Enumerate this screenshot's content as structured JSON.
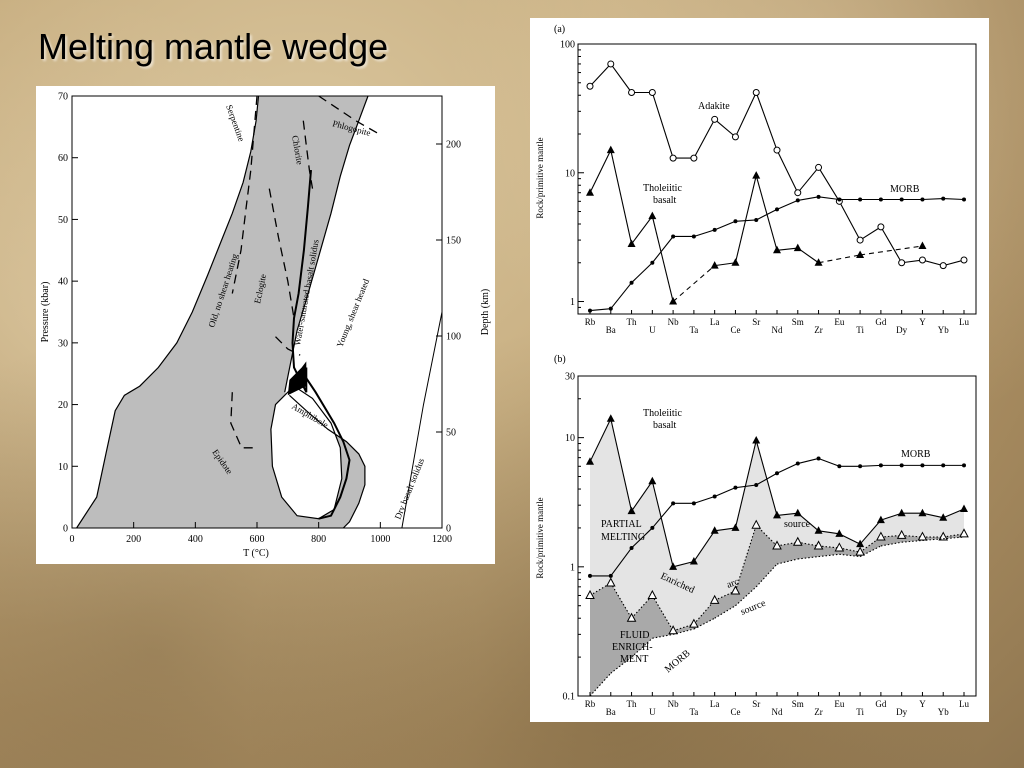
{
  "slide": {
    "title": "Melting mantle wedge",
    "background": "#c9b083"
  },
  "chart_data": [
    {
      "type": "line",
      "xlabel": "T (°C)",
      "ylabel": "Pressure (kbar)",
      "y2label": "Depth (km)",
      "xlim": [
        0,
        1200
      ],
      "ylim": [
        0,
        70
      ],
      "y2lim": [
        0,
        225
      ],
      "x_ticks": [
        0,
        200,
        400,
        600,
        800,
        1000,
        1200
      ],
      "y_ticks": [
        0,
        10,
        20,
        30,
        40,
        50,
        60,
        70
      ],
      "y2_ticks": [
        0,
        50,
        100,
        150,
        200
      ],
      "fill_color": "#bdbdbd",
      "curves": {
        "old": [
          [
            15,
            0
          ],
          [
            80,
            5
          ],
          [
            110,
            12
          ],
          [
            140,
            19
          ],
          [
            170,
            21.5
          ],
          [
            220,
            23
          ],
          [
            280,
            26
          ],
          [
            340,
            30
          ],
          [
            390,
            35
          ],
          [
            440,
            41
          ],
          [
            480,
            46
          ],
          [
            520,
            51
          ],
          [
            555,
            56
          ],
          [
            580,
            61
          ],
          [
            597,
            66
          ],
          [
            605,
            70
          ]
        ],
        "young_upper": [
          [
            690,
            22
          ],
          [
            710,
            27
          ],
          [
            730,
            32
          ],
          [
            760,
            37
          ],
          [
            800,
            44
          ],
          [
            840,
            51
          ],
          [
            870,
            57
          ],
          [
            900,
            62
          ],
          [
            930,
            66
          ],
          [
            960,
            70
          ]
        ],
        "young_lower": [
          [
            705,
            21.5
          ],
          [
            760,
            19
          ],
          [
            830,
            16
          ],
          [
            890,
            14
          ],
          [
            930,
            12
          ],
          [
            950,
            10
          ],
          [
            950,
            7
          ],
          [
            930,
            4
          ],
          [
            900,
            1
          ],
          [
            880,
            0
          ]
        ],
        "water_solidus": [
          [
            760,
            26
          ],
          [
            760,
            22
          ],
          [
            720,
            26
          ],
          [
            715,
            30
          ],
          [
            720,
            34
          ],
          [
            735,
            38
          ],
          [
            752,
            45
          ],
          [
            765,
            52
          ],
          [
            775,
            58
          ]
        ],
        "amphibole_top": [
          [
            750,
            25
          ],
          [
            790,
            22
          ],
          [
            850,
            17
          ],
          [
            880,
            14
          ],
          [
            900,
            11
          ],
          [
            890,
            8
          ],
          [
            870,
            5
          ],
          [
            840,
            2
          ],
          [
            800,
            1.5
          ]
        ],
        "amphibole_loop": [
          [
            700,
            22
          ],
          [
            660,
            20
          ],
          [
            645,
            16
          ],
          [
            650,
            10
          ],
          [
            680,
            5
          ],
          [
            730,
            2
          ],
          [
            800,
            1.5
          ],
          [
            850,
            3
          ],
          [
            875,
            8
          ],
          [
            870,
            13
          ],
          [
            840,
            17
          ],
          [
            780,
            21
          ],
          [
            720,
            23
          ],
          [
            700,
            22
          ]
        ],
        "wedge": [
          [
            705,
            24
          ],
          [
            745,
            26
          ],
          [
            760,
            27
          ],
          [
            760,
            23
          ],
          [
            700,
            21.5
          ]
        ],
        "serpentine": [
          [
            600,
            70
          ],
          [
            590,
            64
          ],
          [
            580,
            58
          ],
          [
            565,
            52
          ],
          [
            548,
            45
          ],
          [
            520,
            38
          ]
        ],
        "eclogite": [
          [
            640,
            55
          ],
          [
            670,
            47
          ],
          [
            700,
            40
          ],
          [
            720,
            34
          ]
        ],
        "epidote": [
          [
            520,
            22
          ],
          [
            515,
            17
          ],
          [
            550,
            13
          ],
          [
            590,
            13
          ]
        ],
        "chlorite": [
          [
            750,
            66
          ],
          [
            760,
            62
          ],
          [
            770,
            58
          ],
          [
            780,
            55
          ]
        ],
        "phlogopite": [
          [
            800,
            70
          ],
          [
            860,
            68
          ],
          [
            920,
            66
          ],
          [
            990,
            64
          ]
        ],
        "dry_solidus": [
          [
            1070,
            0
          ],
          [
            1105,
            10
          ],
          [
            1140,
            20
          ],
          [
            1200,
            35
          ]
        ],
        "dashed_mid": [
          [
            660,
            31
          ],
          [
            700,
            29
          ],
          [
            740,
            28
          ]
        ]
      },
      "labels": {
        "serpentine": "Serpentine",
        "chlorite": "Chlorite",
        "phlogopite": "Phlogopite",
        "old": "Old, no shear heating",
        "eclogite": "Eclogite",
        "water_solidus": "Water-saturated basalt solidus",
        "young": "Young, shear heated",
        "amphibole": "Amphibole",
        "epidote": "Epidote",
        "dry_solidus": "Dry basalt solidus"
      }
    },
    {
      "type": "line",
      "panel_label": "(a)",
      "ylabel": "Rock/primitive mantle",
      "yscale": "log",
      "ylim": [
        0.8,
        100
      ],
      "y_ticks": [
        1,
        10,
        100
      ],
      "categories": [
        "Rb",
        "Ba",
        "Th",
        "U",
        "Nb",
        "Ta",
        "La",
        "Ce",
        "Sr",
        "Nd",
        "Sm",
        "Zr",
        "Eu",
        "Ti",
        "Gd",
        "Dy",
        "Y",
        "Yb",
        "Lu"
      ],
      "series": [
        {
          "name": "Adakite",
          "marker": "open-circle",
          "values": [
            47,
            70,
            42,
            42,
            13,
            13,
            26,
            19,
            42,
            15,
            7,
            11,
            6,
            3,
            3.8,
            2,
            2.1,
            1.9,
            2.1
          ]
        },
        {
          "name": "MORB",
          "marker": "dot",
          "values": [
            0.85,
            0.88,
            1.4,
            2,
            3.2,
            3.2,
            3.6,
            4.2,
            4.3,
            5.2,
            6.1,
            6.5,
            6.2,
            6.2,
            6.2,
            6.2,
            6.2,
            6.3,
            6.2
          ]
        },
        {
          "name": "Tholeiitic basalt",
          "marker": "filled-triangle",
          "values": [
            7,
            15,
            2.8,
            4.6,
            1,
            null,
            1.9,
            2,
            9.5,
            2.5,
            2.6,
            2,
            null,
            2.3,
            null,
            null,
            2.7,
            null,
            null
          ]
        }
      ]
    },
    {
      "type": "area",
      "panel_label": "(b)",
      "ylabel": "Rock/primitive mantle",
      "yscale": "log",
      "ylim": [
        0.1,
        30
      ],
      "y_ticks": [
        0.1,
        1,
        10,
        30
      ],
      "categories": [
        "Rb",
        "Ba",
        "Th",
        "U",
        "Nb",
        "Ta",
        "La",
        "Ce",
        "Sr",
        "Nd",
        "Sm",
        "Zr",
        "Eu",
        "Ti",
        "Gd",
        "Dy",
        "Y",
        "Yb",
        "Lu"
      ],
      "series": [
        {
          "name": "Tholeiitic basalt",
          "marker": "filled-triangle",
          "values": [
            6.5,
            14,
            2.7,
            4.6,
            1,
            1.1,
            1.9,
            2,
            9.5,
            2.5,
            2.6,
            1.9,
            1.8,
            1.5,
            2.3,
            2.6,
            2.6,
            2.4,
            2.8
          ]
        },
        {
          "name": "MORB",
          "marker": "dot",
          "values": [
            0.85,
            0.85,
            1.4,
            2,
            3.1,
            3.1,
            3.5,
            4.1,
            4.3,
            5.3,
            6.3,
            6.9,
            6,
            6,
            6.1,
            6.1,
            6.1,
            6.1,
            6.1
          ]
        },
        {
          "name": "Enriched arc source",
          "marker": "open-triangle",
          "values": [
            0.6,
            0.75,
            0.4,
            0.6,
            0.32,
            0.36,
            0.55,
            0.65,
            2.1,
            1.45,
            1.55,
            1.45,
            1.4,
            1.3,
            1.7,
            1.75,
            1.7,
            1.7,
            1.8
          ]
        },
        {
          "name": "MORB source",
          "marker": "none",
          "values": [
            0.1,
            0.15,
            0.2,
            0.28,
            0.3,
            0.33,
            0.4,
            0.5,
            0.7,
            1.05,
            1.15,
            1.2,
            1.25,
            1.2,
            1.45,
            1.55,
            1.6,
            1.65,
            1.7
          ]
        }
      ],
      "labels": {
        "partial_melting": [
          "PARTIAL",
          "MELTING"
        ],
        "fluid_enrichment": [
          "FLUID",
          "ENRICH-",
          "MENT"
        ],
        "enriched": "Enriched",
        "arc": "arc",
        "source_upper": "source",
        "source_lower": "source",
        "morb": "MORB"
      }
    }
  ]
}
